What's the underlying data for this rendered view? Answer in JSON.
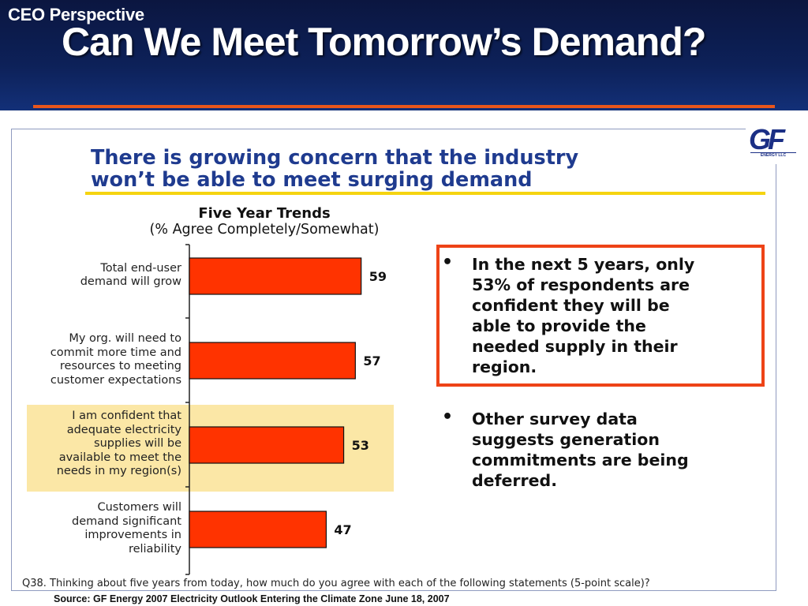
{
  "header": {
    "kicker": "CEO Perspective",
    "title": "Can We Meet Tomorrow’s Demand?"
  },
  "logo": {
    "letters": "GF",
    "subtext": "ENERGY LLC"
  },
  "headline": {
    "line1": "There is growing concern that the industry",
    "line2": "won’t be able to meet surging demand"
  },
  "chart_data": {
    "type": "bar",
    "orientation": "horizontal",
    "title": "Five Year Trends",
    "subtitle": "(% Agree Completely/Somewhat)",
    "categories": [
      [
        "Total end-user",
        "demand will grow"
      ],
      [
        "My org. will need to",
        "commit more time and",
        "resources to meeting",
        "customer expectations"
      ],
      [
        "I am confident that",
        "adequate electricity",
        "supplies will be",
        "available to meet the",
        "needs in my region(s)"
      ],
      [
        "Customers will",
        "demand significant",
        "improvements in",
        "reliability"
      ]
    ],
    "values": [
      59,
      57,
      53,
      47
    ],
    "highlighted_index": 2,
    "bar_color": "#ff3300",
    "highlight_color": "#fbe7a6",
    "grid": false,
    "note": "Q38. Thinking about five years from today, how much do you agree with each of the following statements  (5-point scale)?"
  },
  "bullets": [
    {
      "lines": [
        "In the next 5 years, only",
        "53% of respondents are",
        "confident they will be",
        "able to provide the",
        "needed supply in their",
        "region."
      ],
      "boxed": true,
      "box_color": "#ee4317"
    },
    {
      "lines": [
        "Other  survey data",
        "suggests generation",
        "commitments are being",
        "deferred."
      ],
      "boxed": false
    }
  ],
  "bullet_glyph": "•",
  "source": "Source: GF Energy 2007 Electricity Outlook Entering the Climate Zone June 18, 2007",
  "colors": {
    "header_bg": "#0d2159",
    "accent_rule": "#e8561c",
    "headline_text": "#1f3b8f",
    "headline_rule": "#f5d410"
  }
}
